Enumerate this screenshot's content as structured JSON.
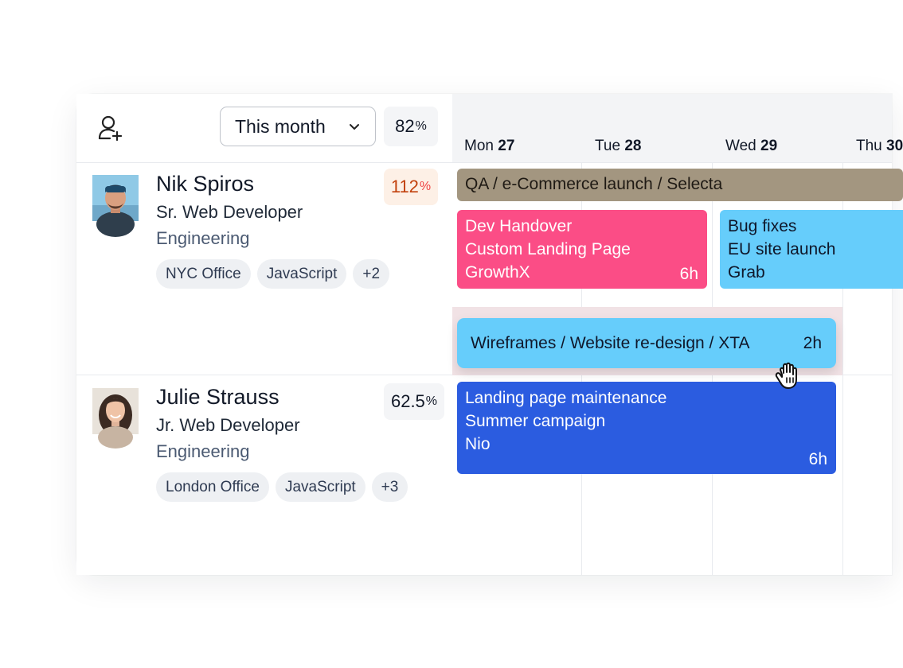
{
  "header": {
    "period_select": "This month",
    "utilization": {
      "value": "82",
      "unit": "%"
    }
  },
  "days": [
    {
      "weekday": "Mon",
      "date": "27"
    },
    {
      "weekday": "Tue",
      "date": "28"
    },
    {
      "weekday": "Wed",
      "date": "29"
    },
    {
      "weekday": "Thu",
      "date": "30"
    }
  ],
  "people": [
    {
      "name": "Nik Spiros",
      "role": "Sr. Web Developer",
      "department": "Engineering",
      "utilization": {
        "value": "112",
        "unit": "%"
      },
      "tags": [
        "NYC Office",
        "JavaScript",
        "+2"
      ]
    },
    {
      "name": "Julie Strauss",
      "role": "Jr. Web Developer",
      "department": "Engineering",
      "utilization": {
        "value": "62.5",
        "unit": "%"
      },
      "tags": [
        "London Office",
        "JavaScript",
        "+3"
      ]
    }
  ],
  "tasks": {
    "qa": {
      "label": "QA / e-Commerce launch / Selecta",
      "color": "#a39680"
    },
    "dev_handover": {
      "title": "Dev Handover",
      "project": "Custom Landing Page",
      "client": "GrowthX",
      "hours": "6h",
      "color": "#fb4d86"
    },
    "bug_fixes": {
      "title": "Bug fixes",
      "project": "EU site launch",
      "client": "Grab",
      "color": "#66cdfb"
    },
    "wireframes": {
      "label": "Wireframes / Website re-design / XTA",
      "hours": "2h",
      "color": "#66cdfb"
    },
    "landing": {
      "title": "Landing page maintenance",
      "project": "Summer campaign",
      "client": "Nio",
      "hours": "6h",
      "color": "#2b5ce0"
    }
  }
}
